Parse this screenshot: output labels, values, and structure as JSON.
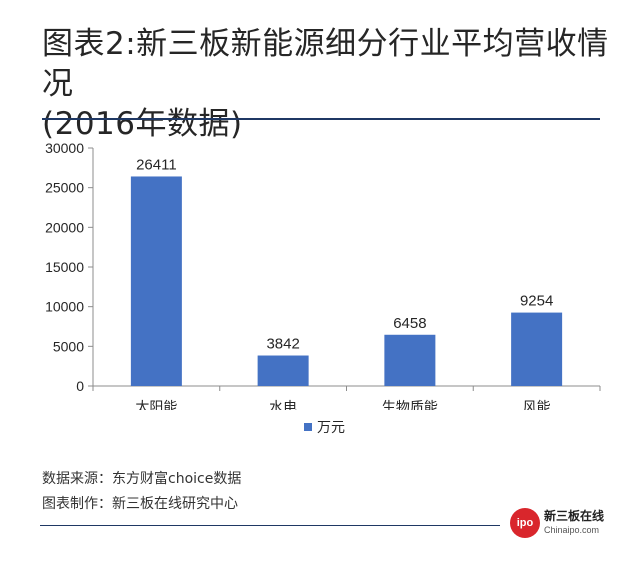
{
  "header": {
    "title_line1": "图表2:新三板新能源细分行业平均营收情况",
    "title_line2": "(2016年数据)"
  },
  "colors": {
    "bar": "#4472c4",
    "accent_rule": "#1f3864",
    "logo_red": "#d9262c"
  },
  "chart_data": {
    "type": "bar",
    "title": "",
    "xlabel": "",
    "ylabel": "",
    "categories": [
      "太阳能",
      "水电",
      "生物质能",
      "风能"
    ],
    "series": [
      {
        "name": "万元",
        "values": [
          26411,
          3842,
          6458,
          9254
        ]
      }
    ],
    "ylim": [
      0,
      30000
    ],
    "yticks": [
      0,
      5000,
      10000,
      15000,
      20000,
      25000,
      30000
    ],
    "grid": false,
    "legend_position": "bottom",
    "data_labels": true
  },
  "legend": {
    "label": "万元"
  },
  "footer": {
    "source": "数据来源：东方财富choice数据",
    "made_by": "图表制作：新三板在线研究中心"
  },
  "logo": {
    "badge": "ipo",
    "name": "新三板在线",
    "domain": "Chinaipo.com"
  }
}
